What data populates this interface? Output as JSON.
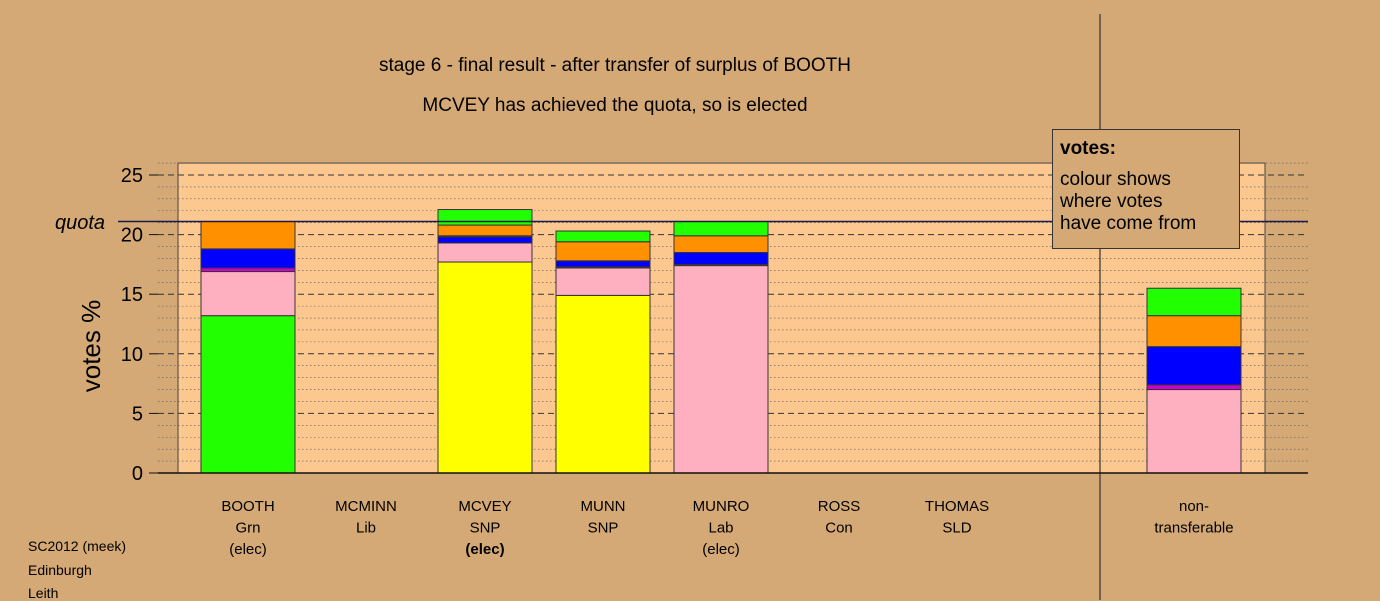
{
  "title_line1": "stage 6 - final result - after transfer of surplus of BOOTH",
  "title_line2": "MCVEY has achieved the quota, so is elected",
  "legend": {
    "title": "votes:",
    "lines": [
      "colour shows",
      "where votes",
      "have come from"
    ]
  },
  "footer": [
    "SC2012 (meek)",
    "Edinburgh",
    "Leith"
  ],
  "chart_data": {
    "type": "bar",
    "stacked": true,
    "ylabel": "votes %",
    "ylim": [
      0,
      26
    ],
    "yticks": [
      0,
      5,
      10,
      15,
      20,
      25
    ],
    "quota": 21.1,
    "quota_label": "quota",
    "grid": true,
    "legend_position": "top-right",
    "categories": [
      {
        "name": "BOOTH",
        "party": "Grn",
        "status": "(elec)",
        "bold": false
      },
      {
        "name": "MCMINN",
        "party": "Lib",
        "status": "",
        "bold": false
      },
      {
        "name": "MCVEY",
        "party": "SNP",
        "status": "(elec)",
        "bold": true
      },
      {
        "name": "MUNN",
        "party": "SNP",
        "status": "",
        "bold": false
      },
      {
        "name": "MUNRO",
        "party": "Lab",
        "status": "(elec)",
        "bold": false
      },
      {
        "name": "ROSS",
        "party": "Con",
        "status": "",
        "bold": false
      },
      {
        "name": "THOMAS",
        "party": "SLD",
        "status": "",
        "bold": false
      },
      {
        "name": "non-",
        "party": "transferable",
        "status": "",
        "bold": false
      }
    ],
    "series_colors": {
      "Grn": "#22ff00",
      "SNP": "#ffff00",
      "Lab": "#ffb0c0",
      "Con": "#0000ff",
      "Lib": "#ff9000",
      "SLD": "#cc00cc"
    },
    "stacks": [
      [
        {
          "party": "Grn",
          "value": 13.2
        },
        {
          "party": "Lab",
          "value": 3.7
        },
        {
          "party": "SLD",
          "value": 0.3
        },
        {
          "party": "Con",
          "value": 1.6
        },
        {
          "party": "Lib",
          "value": 2.3
        }
      ],
      [],
      [
        {
          "party": "SNP",
          "value": 17.7
        },
        {
          "party": "Lab",
          "value": 1.6
        },
        {
          "party": "Con",
          "value": 0.5
        },
        {
          "party": "SLD",
          "value": 0.1
        },
        {
          "party": "Lib",
          "value": 0.9
        },
        {
          "party": "Grn",
          "value": 1.3
        }
      ],
      [
        {
          "party": "SNP",
          "value": 14.9
        },
        {
          "party": "Lab",
          "value": 2.3
        },
        {
          "party": "SLD",
          "value": 0.1
        },
        {
          "party": "Con",
          "value": 0.5
        },
        {
          "party": "Lib",
          "value": 1.6
        },
        {
          "party": "Grn",
          "value": 0.9
        }
      ],
      [
        {
          "party": "Lab",
          "value": 17.4
        },
        {
          "party": "SLD",
          "value": 0.1
        },
        {
          "party": "Con",
          "value": 1.0
        },
        {
          "party": "Lib",
          "value": 1.4
        },
        {
          "party": "Grn",
          "value": 1.2
        }
      ],
      [],
      [],
      [
        {
          "party": "Lab",
          "value": 7.0
        },
        {
          "party": "SLD",
          "value": 0.4
        },
        {
          "party": "Con",
          "value": 3.2
        },
        {
          "party": "Lib",
          "value": 2.6
        },
        {
          "party": "Grn",
          "value": 2.3
        }
      ]
    ]
  }
}
